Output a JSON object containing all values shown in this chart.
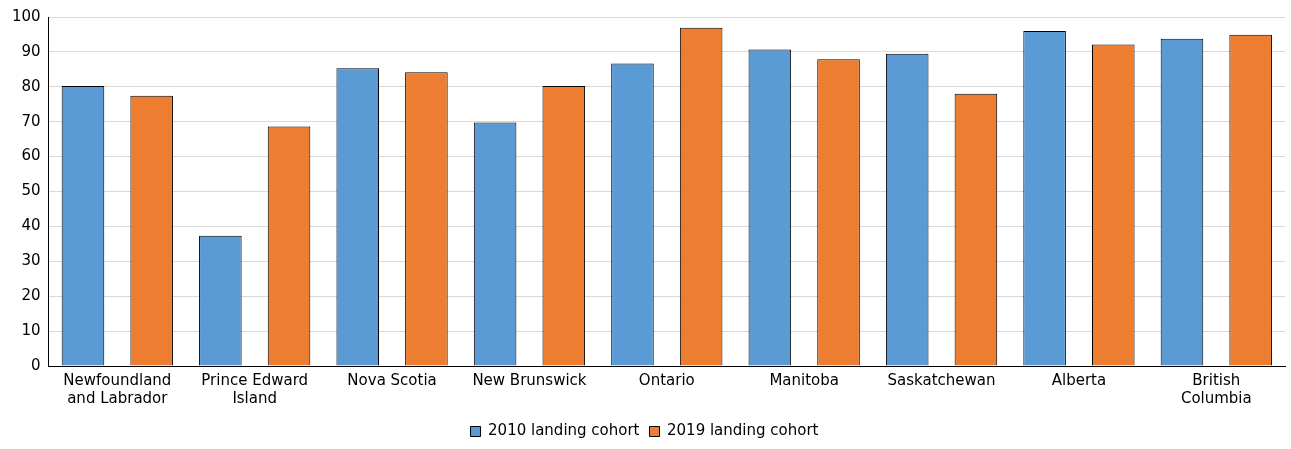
{
  "chart_data": {
    "type": "bar",
    "categories": [
      "Newfoundland and Labrador",
      "Prince Edward Island",
      "Nova Scotia",
      "New Brunswick",
      "Ontario",
      "Manitoba",
      "Saskatchewan",
      "Alberta",
      "British Columbia"
    ],
    "series": [
      {
        "name": "2010 landing cohort",
        "color": "#5b9bd5",
        "values": [
          80.2,
          37.3,
          85.3,
          69.8,
          86.7,
          90.7,
          89.5,
          96.0,
          93.8
        ]
      },
      {
        "name": "2019 landing cohort",
        "color": "#ed7d31",
        "values": [
          77.4,
          68.6,
          84.2,
          80.2,
          96.9,
          87.9,
          78.0,
          92.1,
          94.9
        ]
      }
    ],
    "ylim": [
      0,
      100
    ],
    "yticks": [
      0,
      10,
      20,
      30,
      40,
      50,
      60,
      70,
      80,
      90,
      100
    ],
    "grid": "y",
    "legend": "bottom"
  }
}
